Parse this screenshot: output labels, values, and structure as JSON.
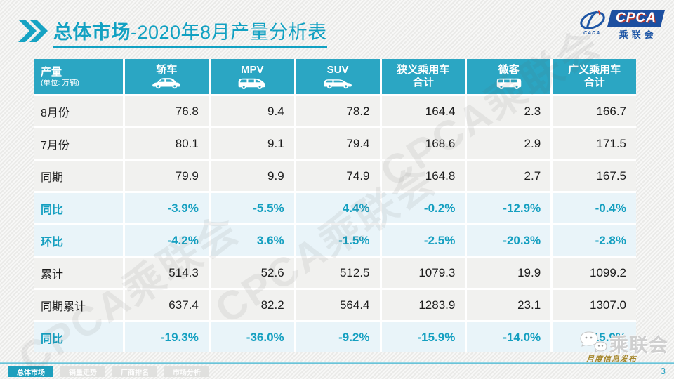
{
  "title": {
    "section": "总体市场",
    "rest": "-2020年8月产量分析表"
  },
  "logo": {
    "cpca": "CPCA",
    "org": "乘联会",
    "cada": "CADA"
  },
  "watermark": {
    "text": "CPCA乘联会"
  },
  "table": {
    "corner": {
      "title": "产量",
      "subtitle": "(单位: 万辆)"
    },
    "columns": [
      {
        "label": "轿车",
        "icon": "sedan-icon"
      },
      {
        "label": "MPV",
        "icon": "mpv-icon"
      },
      {
        "label": "SUV",
        "icon": "suv-icon"
      },
      {
        "label": "狭义乘用车",
        "label2": "合计"
      },
      {
        "label": "微客",
        "icon": "minibus-icon"
      },
      {
        "label": "广义乘用车",
        "label2": "合计"
      }
    ],
    "rows": [
      {
        "label": "8月份",
        "type": "normal",
        "values": [
          "76.8",
          "9.4",
          "78.2",
          "164.4",
          "2.3",
          "166.7"
        ]
      },
      {
        "label": "7月份",
        "type": "normal",
        "values": [
          "80.1",
          "9.1",
          "79.4",
          "168.6",
          "2.9",
          "171.5"
        ]
      },
      {
        "label": "同期",
        "type": "normal",
        "values": [
          "79.9",
          "9.9",
          "74.9",
          "164.8",
          "2.7",
          "167.5"
        ]
      },
      {
        "label": "同比",
        "type": "percent",
        "values": [
          "-3.9%",
          "-5.5%",
          "4.4%",
          "-0.2%",
          "-12.9%",
          "-0.4%"
        ]
      },
      {
        "label": "环比",
        "type": "percent",
        "values": [
          "-4.2%",
          "3.6%",
          "-1.5%",
          "-2.5%",
          "-20.3%",
          "-2.8%"
        ]
      },
      {
        "label": "累计",
        "type": "normal",
        "values": [
          "514.3",
          "52.6",
          "512.5",
          "1079.3",
          "19.9",
          "1099.2"
        ]
      },
      {
        "label": "同期累计",
        "type": "normal",
        "values": [
          "637.4",
          "82.2",
          "564.4",
          "1283.9",
          "23.1",
          "1307.0"
        ]
      },
      {
        "label": "同比",
        "type": "percent",
        "values": [
          "-19.3%",
          "-36.0%",
          "-9.2%",
          "-15.9%",
          "-14.0%",
          "-15.9%"
        ]
      }
    ]
  },
  "footer": {
    "tabs": [
      {
        "label": "总体市场",
        "active": true
      },
      {
        "label": "销量走势",
        "active": false
      },
      {
        "label": "厂商排名",
        "active": false
      },
      {
        "label": "市场分析",
        "active": false
      }
    ],
    "wechat_name": "乘联会",
    "publish_label": "月度信息发布",
    "page_number": "3"
  },
  "colors": {
    "accent_teal": "#12a1c2",
    "header_bg": "#2ba6c3",
    "percent_row_bg": "#e9f4f9",
    "normal_row_bg": "#f1f1ef",
    "logo_blue": "#1c4fa0",
    "gold": "#a5872c"
  }
}
